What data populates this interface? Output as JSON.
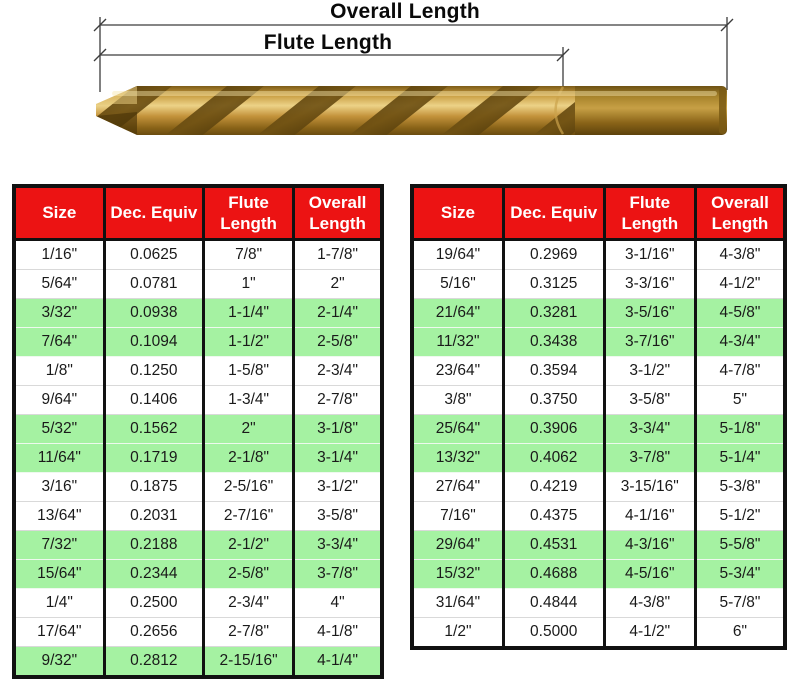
{
  "diagram": {
    "overall_length_label": "Overall Length",
    "flute_length_label": "Flute Length",
    "illustration": "gold-cobalt-twist-drill-bit"
  },
  "colors": {
    "header_bg": "#ec1313",
    "header_text": "#ffffff",
    "row_highlight": "#a5f2a2",
    "drill_gold": "#d4a83e",
    "table_border": "#111111"
  },
  "chart_data": [
    {
      "type": "table",
      "columns": [
        "Size",
        "Dec. Equiv",
        "Flute\nLength",
        "Overall\nLength"
      ],
      "rows": [
        {
          "cells": [
            "1/16\"",
            "0.0625",
            "7/8\"",
            "1-7/8\""
          ],
          "highlight": false
        },
        {
          "cells": [
            "5/64\"",
            "0.0781",
            "1\"",
            "2\""
          ],
          "highlight": false
        },
        {
          "cells": [
            "3/32\"",
            "0.0938",
            "1-1/4\"",
            "2-1/4\""
          ],
          "highlight": true
        },
        {
          "cells": [
            "7/64\"",
            "0.1094",
            "1-1/2\"",
            "2-5/8\""
          ],
          "highlight": true
        },
        {
          "cells": [
            "1/8\"",
            "0.1250",
            "1-5/8\"",
            "2-3/4\""
          ],
          "highlight": false
        },
        {
          "cells": [
            "9/64\"",
            "0.1406",
            "1-3/4\"",
            "2-7/8\""
          ],
          "highlight": false
        },
        {
          "cells": [
            "5/32\"",
            "0.1562",
            "2\"",
            "3-1/8\""
          ],
          "highlight": true
        },
        {
          "cells": [
            "11/64\"",
            "0.1719",
            "2-1/8\"",
            "3-1/4\""
          ],
          "highlight": true
        },
        {
          "cells": [
            "3/16\"",
            "0.1875",
            "2-5/16\"",
            "3-1/2\""
          ],
          "highlight": false
        },
        {
          "cells": [
            "13/64\"",
            "0.2031",
            "2-7/16\"",
            "3-5/8\""
          ],
          "highlight": false
        },
        {
          "cells": [
            "7/32\"",
            "0.2188",
            "2-1/2\"",
            "3-3/4\""
          ],
          "highlight": true
        },
        {
          "cells": [
            "15/64\"",
            "0.2344",
            "2-5/8\"",
            "3-7/8\""
          ],
          "highlight": true
        },
        {
          "cells": [
            "1/4\"",
            "0.2500",
            "2-3/4\"",
            "4\""
          ],
          "highlight": false
        },
        {
          "cells": [
            "17/64\"",
            "0.2656",
            "2-7/8\"",
            "4-1/8\""
          ],
          "highlight": false
        },
        {
          "cells": [
            "9/32\"",
            "0.2812",
            "2-15/16\"",
            "4-1/4\""
          ],
          "highlight": true
        }
      ]
    },
    {
      "type": "table",
      "columns": [
        "Size",
        "Dec. Equiv",
        "Flute\nLength",
        "Overall\nLength"
      ],
      "rows": [
        {
          "cells": [
            "19/64\"",
            "0.2969",
            "3-1/16\"",
            "4-3/8\""
          ],
          "highlight": false
        },
        {
          "cells": [
            "5/16\"",
            "0.3125",
            "3-3/16\"",
            "4-1/2\""
          ],
          "highlight": false
        },
        {
          "cells": [
            "21/64\"",
            "0.3281",
            "3-5/16\"",
            "4-5/8\""
          ],
          "highlight": true
        },
        {
          "cells": [
            "11/32\"",
            "0.3438",
            "3-7/16\"",
            "4-3/4\""
          ],
          "highlight": true
        },
        {
          "cells": [
            "23/64\"",
            "0.3594",
            "3-1/2\"",
            "4-7/8\""
          ],
          "highlight": false
        },
        {
          "cells": [
            "3/8\"",
            "0.3750",
            "3-5/8\"",
            "5\""
          ],
          "highlight": false
        },
        {
          "cells": [
            "25/64\"",
            "0.3906",
            "3-3/4\"",
            "5-1/8\""
          ],
          "highlight": true
        },
        {
          "cells": [
            "13/32\"",
            "0.4062",
            "3-7/8\"",
            "5-1/4\""
          ],
          "highlight": true
        },
        {
          "cells": [
            "27/64\"",
            "0.4219",
            "3-15/16\"",
            "5-3/8\""
          ],
          "highlight": false
        },
        {
          "cells": [
            "7/16\"",
            "0.4375",
            "4-1/16\"",
            "5-1/2\""
          ],
          "highlight": false
        },
        {
          "cells": [
            "29/64\"",
            "0.4531",
            "4-3/16\"",
            "5-5/8\""
          ],
          "highlight": true
        },
        {
          "cells": [
            "15/32\"",
            "0.4688",
            "4-5/16\"",
            "5-3/4\""
          ],
          "highlight": true
        },
        {
          "cells": [
            "31/64\"",
            "0.4844",
            "4-3/8\"",
            "5-7/8\""
          ],
          "highlight": false
        },
        {
          "cells": [
            "1/2\"",
            "0.5000",
            "4-1/2\"",
            "6\""
          ],
          "highlight": false
        }
      ]
    }
  ]
}
